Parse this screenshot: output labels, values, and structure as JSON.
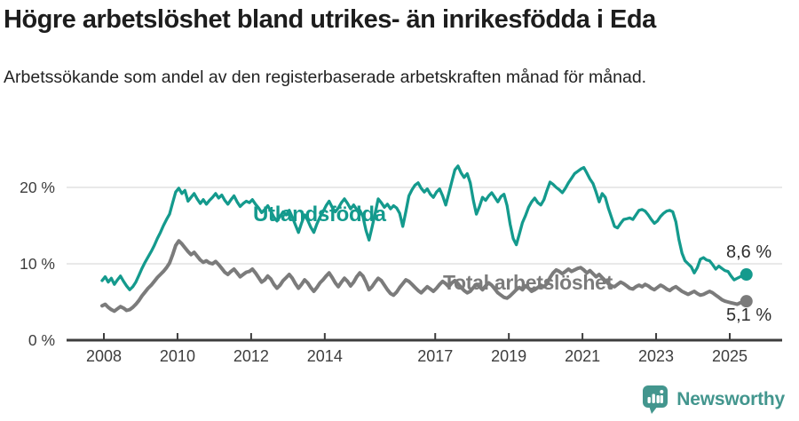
{
  "header": {
    "title": "Högre arbetslöshet bland utrikes- än inrikesfödda i Eda",
    "subtitle": "Arbetssökande som andel av den registerbaserade arbetskraften månad för månad."
  },
  "colors": {
    "accent_teal": "#149a8d",
    "series_gray": "#7b7b7b",
    "grid": "#dcdcdc",
    "axis": "#3d3d3d",
    "tick_label": "#3d3d3d",
    "value_label": "#2e2e2e",
    "brand_teal": "#43968e"
  },
  "chart_data": {
    "type": "line",
    "title": "Högre arbetslöshet bland utrikes- än inrikesfödda i Eda",
    "subtitle": "Arbetssökande som andel av den registerbaserade arbetskraften månad för månad.",
    "x_unit": "month",
    "x_start_year": 2008,
    "x_end": "2025-07",
    "xlim": [
      2008.0,
      2025.58
    ],
    "ylim": [
      0,
      23.5
    ],
    "grid": "horizontal",
    "y_ticks": [
      {
        "value": 0,
        "label": "0 %"
      },
      {
        "value": 10,
        "label": "10 %"
      },
      {
        "value": 20,
        "label": "20 %"
      }
    ],
    "x_ticks": [
      {
        "year": 2008,
        "label": "2008"
      },
      {
        "year": 2010,
        "label": "2010"
      },
      {
        "year": 2012,
        "label": "2012"
      },
      {
        "year": 2014,
        "label": "2014"
      },
      {
        "year": 2017,
        "label": "2017"
      },
      {
        "year": 2019,
        "label": "2019"
      },
      {
        "year": 2021,
        "label": "2021"
      },
      {
        "year": 2023,
        "label": "2023"
      },
      {
        "year": 2025,
        "label": "2025"
      }
    ],
    "series": [
      {
        "name": "Utlandsfödda",
        "color": "#149a8d",
        "end_label": "8,6 %",
        "end_value": 8.6,
        "values": [
          7.8,
          8.3,
          7.6,
          8.1,
          7.3,
          7.9,
          8.4,
          7.7,
          7.1,
          6.6,
          7.0,
          7.6,
          8.5,
          9.4,
          10.2,
          10.9,
          11.6,
          12.4,
          13.3,
          14.1,
          15.0,
          15.8,
          16.5,
          18.0,
          19.4,
          19.9,
          19.2,
          19.6,
          18.2,
          18.7,
          19.2,
          18.5,
          17.9,
          18.4,
          17.8,
          18.3,
          18.7,
          19.2,
          18.6,
          19.0,
          18.3,
          17.8,
          18.4,
          18.9,
          18.1,
          17.5,
          17.9,
          18.2,
          18.0,
          18.4,
          17.8,
          17.3,
          16.7,
          17.1,
          17.6,
          16.9,
          16.1,
          15.6,
          16.2,
          16.8,
          16.4,
          17.0,
          16.1,
          15.1,
          14.1,
          15.3,
          16.4,
          15.7,
          14.8,
          14.1,
          15.2,
          16.1,
          16.8,
          17.6,
          18.2,
          17.4,
          16.8,
          17.3,
          18.0,
          18.5,
          17.9,
          17.2,
          17.7,
          17.1,
          17.0,
          16.2,
          14.4,
          13.1,
          14.8,
          16.6,
          18.5,
          18.0,
          17.4,
          17.8,
          17.2,
          17.6,
          17.3,
          16.6,
          14.9,
          16.8,
          18.9,
          19.7,
          20.3,
          20.6,
          19.9,
          19.4,
          19.8,
          19.1,
          18.7,
          19.4,
          19.8,
          18.9,
          17.7,
          19.2,
          20.8,
          22.3,
          22.8,
          21.9,
          21.3,
          21.8,
          20.6,
          18.3,
          16.5,
          17.5,
          18.7,
          18.3,
          18.9,
          19.3,
          18.7,
          18.1,
          18.8,
          19.1,
          17.6,
          15.2,
          13.3,
          12.5,
          13.9,
          15.4,
          16.3,
          17.4,
          18.1,
          18.6,
          18.0,
          17.7,
          18.4,
          19.6,
          20.7,
          20.4,
          20.0,
          19.7,
          19.3,
          19.9,
          20.6,
          21.2,
          21.8,
          22.1,
          22.4,
          22.6,
          21.9,
          21.1,
          20.5,
          19.4,
          18.1,
          19.2,
          18.7,
          17.3,
          16.1,
          14.9,
          14.7,
          15.3,
          15.8,
          15.9,
          16.0,
          15.8,
          16.4,
          17.0,
          17.1,
          16.9,
          16.4,
          15.8,
          15.3,
          15.6,
          16.2,
          16.6,
          16.9,
          17.0,
          16.8,
          15.5,
          13.2,
          11.4,
          10.4,
          10.0,
          9.6,
          8.8,
          9.5,
          10.6,
          10.8,
          10.5,
          10.4,
          9.9,
          9.3,
          9.7,
          9.4,
          9.1,
          9.0,
          8.4,
          7.9,
          8.1,
          8.3,
          8.5,
          8.6
        ]
      },
      {
        "name": "Total arbetslöshet",
        "color": "#7b7b7b",
        "end_label": "5,1 %",
        "end_value": 5.1,
        "values": [
          4.5,
          4.7,
          4.3,
          4.0,
          3.8,
          4.1,
          4.4,
          4.2,
          3.9,
          4.0,
          4.3,
          4.7,
          5.2,
          5.8,
          6.3,
          6.8,
          7.2,
          7.7,
          8.2,
          8.6,
          9.0,
          9.5,
          10.1,
          11.2,
          12.4,
          13.0,
          12.6,
          12.1,
          11.6,
          11.2,
          11.5,
          11.0,
          10.5,
          10.2,
          10.4,
          10.1,
          10.0,
          10.3,
          9.9,
          9.4,
          8.9,
          8.6,
          9.0,
          9.3,
          8.8,
          8.3,
          8.6,
          8.9,
          9.0,
          9.3,
          8.8,
          8.2,
          7.6,
          7.9,
          8.4,
          8.0,
          7.3,
          6.8,
          7.2,
          7.8,
          8.2,
          8.6,
          8.1,
          7.4,
          6.8,
          7.3,
          7.9,
          7.5,
          6.9,
          6.4,
          6.9,
          7.5,
          7.9,
          8.4,
          8.8,
          8.2,
          7.5,
          7.0,
          7.6,
          8.1,
          7.7,
          7.1,
          7.6,
          8.3,
          8.8,
          8.4,
          7.6,
          6.6,
          7.0,
          7.6,
          8.1,
          7.8,
          7.2,
          6.6,
          6.1,
          5.9,
          6.3,
          6.9,
          7.4,
          7.9,
          7.7,
          7.3,
          6.9,
          6.5,
          6.2,
          6.6,
          7.0,
          6.7,
          6.4,
          6.8,
          7.3,
          7.7,
          7.4,
          7.0,
          7.5,
          7.8,
          7.4,
          6.9,
          6.5,
          6.2,
          6.4,
          6.9,
          7.3,
          7.0,
          6.6,
          7.1,
          7.5,
          7.2,
          6.7,
          6.2,
          5.9,
          5.6,
          5.5,
          5.8,
          6.2,
          6.6,
          6.9,
          6.6,
          7.1,
          6.8,
          6.4,
          6.6,
          6.9,
          7.2,
          7.0,
          7.4,
          8.2,
          8.8,
          9.2,
          9.0,
          8.7,
          9.0,
          9.3,
          9.0,
          9.2,
          9.4,
          9.5,
          9.2,
          8.8,
          9.1,
          8.7,
          8.3,
          8.6,
          8.2,
          7.8,
          7.4,
          7.1,
          7.0,
          7.3,
          7.6,
          7.4,
          7.1,
          6.8,
          6.7,
          7.0,
          7.2,
          7.0,
          7.3,
          7.1,
          6.8,
          6.6,
          6.9,
          7.2,
          7.0,
          6.7,
          6.5,
          6.8,
          7.0,
          6.7,
          6.4,
          6.2,
          6.0,
          6.2,
          6.4,
          6.1,
          5.9,
          6.0,
          6.2,
          6.4,
          6.2,
          5.9,
          5.6,
          5.3,
          5.1,
          5.0,
          4.9,
          4.8,
          4.7,
          4.9,
          5.0,
          5.1
        ]
      }
    ]
  },
  "footer": {
    "brand": "Newsworthy",
    "logo_icon": "bar-chart-speech-bubble-icon"
  }
}
